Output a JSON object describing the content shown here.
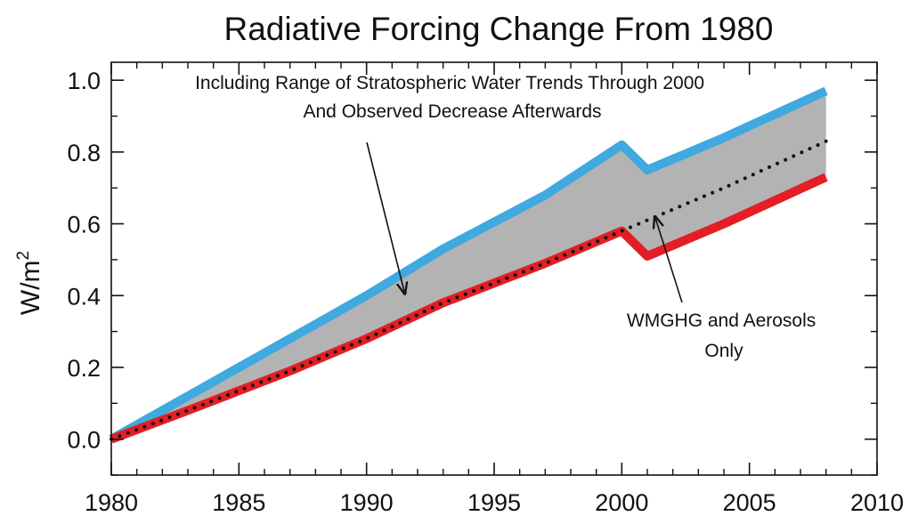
{
  "chart_data": {
    "type": "area",
    "title": "Radiative Forcing Change From 1980",
    "xlabel": "",
    "ylabel": "W/m",
    "ylabel_superscript": "2",
    "xlim": [
      1980,
      2010
    ],
    "ylim": [
      -0.1,
      1.05
    ],
    "x_ticks": [
      1980,
      1985,
      1990,
      1995,
      2000,
      2005,
      2010
    ],
    "y_ticks": [
      0.0,
      0.2,
      0.4,
      0.6,
      0.8,
      1.0
    ],
    "x_tick_labels": [
      "1980",
      "1985",
      "1990",
      "1995",
      "2000",
      "2005",
      "2010"
    ],
    "y_tick_labels": [
      "0.0",
      "0.2",
      "0.4",
      "0.6",
      "0.8",
      "1.0"
    ],
    "grid": false,
    "series": [
      {
        "color": "#3fa9e0",
        "style": "solid",
        "x": [
          1980,
          1983,
          1987,
          1990,
          1993,
          1997,
          2000,
          2001,
          2004,
          2008
        ],
        "y": [
          0.0,
          0.12,
          0.28,
          0.4,
          0.53,
          0.68,
          0.82,
          0.75,
          0.84,
          0.97
        ]
      },
      {
        "color": "#e31e24",
        "style": "solid",
        "x": [
          1980,
          1983,
          1987,
          1990,
          1993,
          1997,
          2000,
          2001,
          2004,
          2008
        ],
        "y": [
          0.0,
          0.08,
          0.19,
          0.28,
          0.38,
          0.49,
          0.58,
          0.51,
          0.6,
          0.73
        ]
      },
      {
        "color": "#111111",
        "style": "dotted",
        "x": [
          1980,
          1983,
          1987,
          1990,
          1993,
          1997,
          2000,
          2004,
          2008
        ],
        "y": [
          0.0,
          0.08,
          0.19,
          0.28,
          0.38,
          0.49,
          0.58,
          0.7,
          0.83
        ]
      }
    ],
    "fill_between": {
      "color": "#b3b3b3"
    },
    "annotations": [
      {
        "lines": [
          "Including Range of Stratospheric Water Trends Through 2000",
          "And Observed Decrease Afterwards"
        ],
        "arrow_to": {
          "x": 1991.5,
          "y": 0.405
        }
      },
      {
        "lines": [
          "WMGHG and Aerosols",
          "Only"
        ],
        "arrow_to": {
          "x": 2001.3,
          "y": 0.62
        }
      }
    ]
  }
}
